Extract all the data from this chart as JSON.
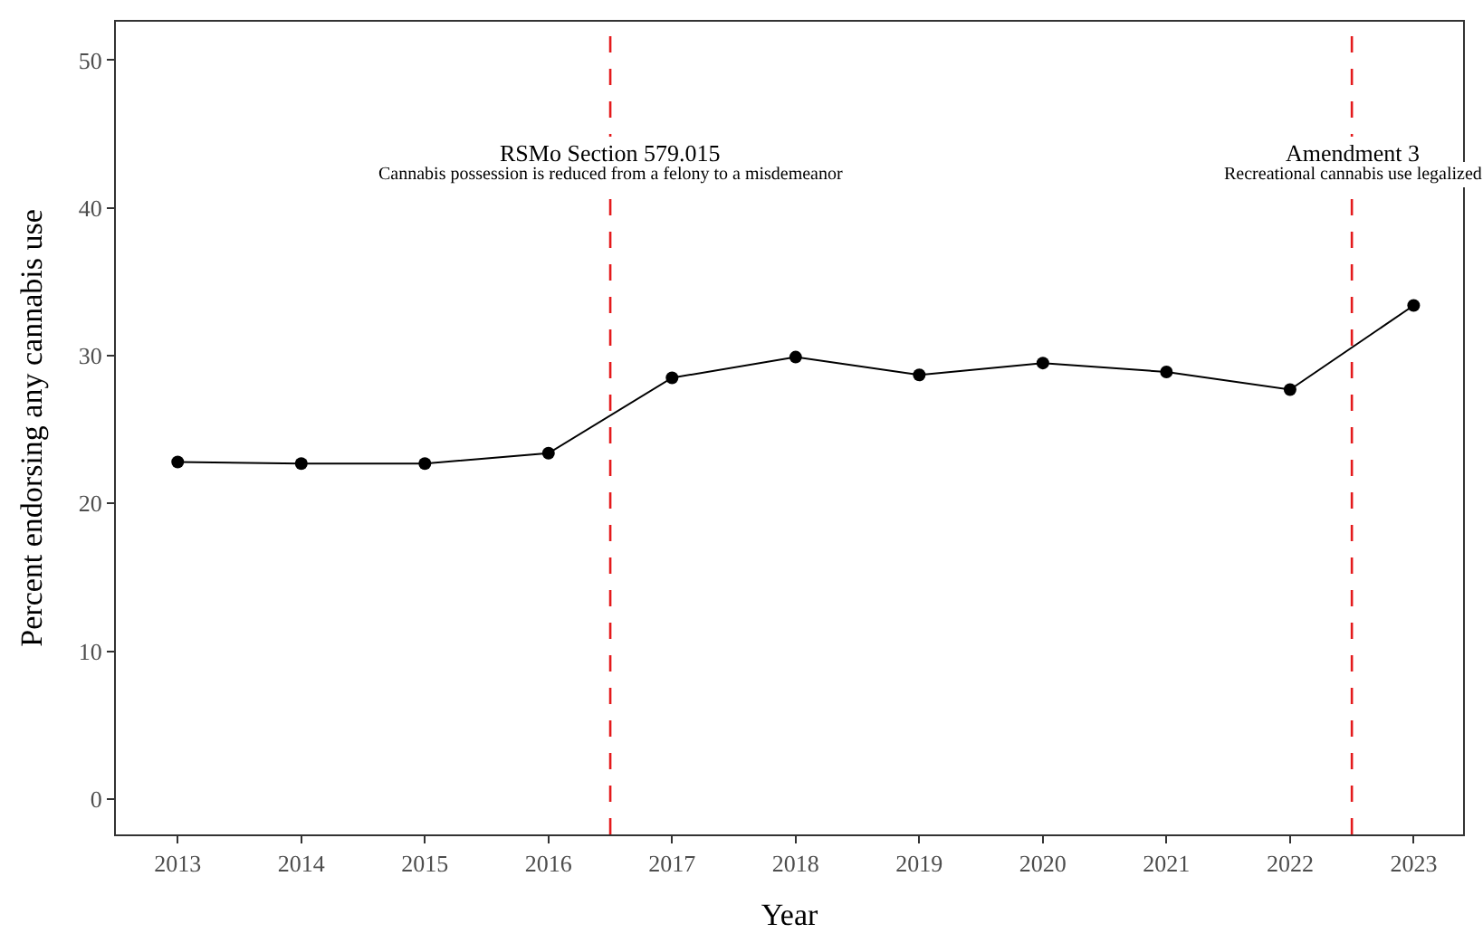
{
  "chart_data": {
    "type": "line",
    "xlabel": "Year",
    "ylabel": "Percent endorsing any cannabis use",
    "x": [
      2013,
      2014,
      2015,
      2016,
      2017,
      2018,
      2019,
      2020,
      2021,
      2022,
      2023
    ],
    "series": [
      {
        "color": "#000000",
        "values": [
          22.8,
          22.7,
          22.7,
          23.4,
          28.5,
          29.9,
          28.7,
          29.5,
          28.9,
          27.7,
          33.4
        ]
      }
    ],
    "xlim": [
      2012.5,
      2023.4
    ],
    "xticks": [
      2013,
      2014,
      2015,
      2016,
      2017,
      2018,
      2019,
      2020,
      2021,
      2022,
      2023
    ],
    "ylim": [
      -2.4,
      52.6
    ],
    "yticks": [
      0,
      10,
      20,
      30,
      40,
      50
    ],
    "ref_lines": [
      {
        "axis": "x",
        "value": 2016.5,
        "color": "#e41a1c",
        "line_style": "dashed",
        "label": "RSMo Section 579.015"
      },
      {
        "axis": "x",
        "value": 2022.5,
        "color": "#e41a1c",
        "line_style": "dashed",
        "label": "Amendment 3"
      }
    ],
    "annotations": [
      {
        "text": "Cannabis possession is reduced from a felony to a misdemeanor",
        "x": 2016.5,
        "y": 42.2
      },
      {
        "text": "Recreational cannabis use legalized",
        "x": 2022.5,
        "y": 42.2
      }
    ],
    "marker": "circle",
    "line_style": "solid"
  }
}
